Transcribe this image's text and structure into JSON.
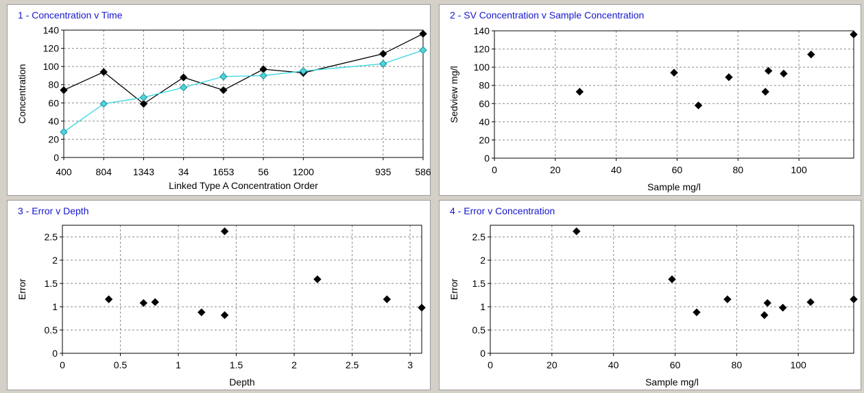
{
  "chart_data": [
    {
      "type": "line",
      "title": "1 - Concentration v Time",
      "xlabel": "Linked Type A Concentration Order",
      "ylabel": "Concentration",
      "ylim": [
        0,
        140
      ],
      "yticks": [
        "0",
        "20",
        "40",
        "60",
        "80",
        "100",
        "120",
        "140"
      ],
      "xticks": [
        {
          "label": "400",
          "index": 0
        },
        {
          "label": "804",
          "index": 2
        },
        {
          "label": "1343",
          "index": 4
        },
        {
          "label": "34",
          "index": 6
        },
        {
          "label": "1653",
          "index": 8
        },
        {
          "label": "56",
          "index": 10
        },
        {
          "label": "1200",
          "index": 12
        },
        {
          "label": "935",
          "index": 16
        },
        {
          "label": "586",
          "index": 18
        }
      ],
      "xlim": [
        0,
        18
      ],
      "grid": true,
      "series": [
        {
          "color": "#000000",
          "marker": "#000000",
          "x": [
            0,
            2,
            4,
            6,
            8,
            10,
            12,
            16,
            18
          ],
          "values": [
            74,
            94,
            59,
            88,
            74,
            97,
            93,
            114,
            136
          ]
        },
        {
          "color": "#33d6e0",
          "marker": "#4fd3dc",
          "x": [
            0,
            2,
            4,
            6,
            8,
            10,
            12,
            16,
            18
          ],
          "values": [
            28,
            59,
            66,
            77,
            89,
            90,
            95,
            103,
            118
          ]
        }
      ]
    },
    {
      "type": "scatter",
      "title": "2 - SV Concentration v Sample Concentration",
      "xlabel": "Sample mg/l",
      "ylabel": "Sedview mg/l",
      "xlim": [
        0,
        118
      ],
      "ylim": [
        0,
        140
      ],
      "xticks": [
        "0",
        "20",
        "40",
        "60",
        "80",
        "100"
      ],
      "xtick_values": [
        0,
        20,
        40,
        60,
        80,
        100
      ],
      "yticks": [
        "0",
        "20",
        "40",
        "60",
        "80",
        "100",
        "120",
        "140"
      ],
      "ytick_values": [
        0,
        20,
        40,
        60,
        80,
        100,
        120,
        140
      ],
      "grid": true,
      "points": [
        [
          28,
          73
        ],
        [
          59,
          94
        ],
        [
          67,
          58
        ],
        [
          77,
          89
        ],
        [
          89,
          73
        ],
        [
          90,
          96
        ],
        [
          95,
          93
        ],
        [
          104,
          114
        ],
        [
          118,
          136
        ]
      ]
    },
    {
      "type": "scatter",
      "title": "3 - Error v Depth",
      "xlabel": "Depth",
      "ylabel": "Error",
      "xlim": [
        0,
        3.1
      ],
      "ylim": [
        0,
        2.75
      ],
      "xticks": [
        "0",
        "0.5",
        "1",
        "1.5",
        "2",
        "2.5",
        "3"
      ],
      "xtick_values": [
        0,
        0.5,
        1,
        1.5,
        2,
        2.5,
        3
      ],
      "yticks": [
        "0",
        "0.5",
        "1",
        "1.5",
        "2",
        "2.5"
      ],
      "ytick_values": [
        0,
        0.5,
        1,
        1.5,
        2,
        2.5
      ],
      "grid": true,
      "points": [
        [
          0.4,
          1.16
        ],
        [
          0.7,
          1.08
        ],
        [
          0.8,
          1.1
        ],
        [
          1.2,
          0.88
        ],
        [
          1.4,
          0.82
        ],
        [
          1.4,
          2.62
        ],
        [
          2.2,
          1.59
        ],
        [
          2.8,
          1.16
        ],
        [
          3.1,
          0.98
        ]
      ]
    },
    {
      "type": "scatter",
      "title": "4 - Error v Concentration",
      "xlabel": "Sample mg/l",
      "ylabel": "Error",
      "xlim": [
        0,
        118
      ],
      "ylim": [
        0,
        2.75
      ],
      "xticks": [
        "0",
        "20",
        "40",
        "60",
        "80",
        "100"
      ],
      "xtick_values": [
        0,
        20,
        40,
        60,
        80,
        100
      ],
      "yticks": [
        "0",
        "0.5",
        "1",
        "1.5",
        "2",
        "2.5"
      ],
      "ytick_values": [
        0,
        0.5,
        1,
        1.5,
        2,
        2.5
      ],
      "grid": true,
      "points": [
        [
          28,
          2.62
        ],
        [
          59,
          1.59
        ],
        [
          67,
          0.88
        ],
        [
          77,
          1.16
        ],
        [
          89,
          0.82
        ],
        [
          90,
          1.08
        ],
        [
          95,
          0.98
        ],
        [
          104,
          1.1
        ],
        [
          118,
          1.16
        ]
      ]
    }
  ]
}
